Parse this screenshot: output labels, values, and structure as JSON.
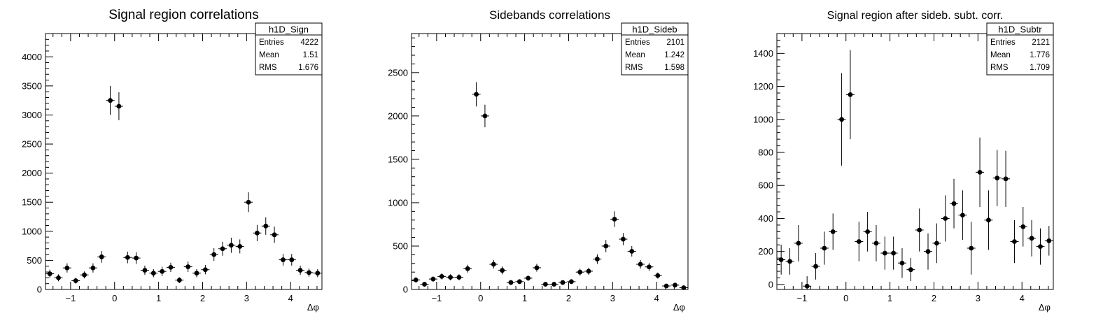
{
  "chart_data": [
    {
      "type": "scatter",
      "title": "Signal region correlations",
      "xlabel": "Δφ",
      "ylabel": "",
      "xlim": [
        -1.5708,
        4.7124
      ],
      "ylim": [
        0,
        4400
      ],
      "xticks": [
        -1,
        0,
        1,
        2,
        3,
        4
      ],
      "yticks": [
        0,
        500,
        1000,
        1500,
        2000,
        2500,
        3000,
        3500,
        4000
      ],
      "stats": {
        "name": "h1D_Sign",
        "entries": "4222",
        "mean": "1.51",
        "rms": "1.676"
      },
      "series": [
        {
          "x": [
            -1.473,
            -1.276,
            -1.08,
            -0.884,
            -0.687,
            -0.491,
            -0.295,
            -0.098,
            0.098,
            0.295,
            0.491,
            0.687,
            0.884,
            1.08,
            1.276,
            1.473,
            1.669,
            1.865,
            2.062,
            2.258,
            2.454,
            2.651,
            2.847,
            3.043,
            3.24,
            3.436,
            3.632,
            3.829,
            4.025,
            4.221,
            4.418,
            4.614
          ],
          "y": [
            270,
            200,
            370,
            150,
            250,
            370,
            560,
            3250,
            3150,
            550,
            540,
            330,
            280,
            310,
            380,
            160,
            390,
            280,
            340,
            600,
            700,
            760,
            740,
            1500,
            970,
            1090,
            940,
            510,
            510,
            330,
            290,
            280
          ],
          "err": [
            70,
            60,
            80,
            50,
            60,
            80,
            100,
            250,
            240,
            100,
            100,
            80,
            70,
            80,
            80,
            50,
            90,
            70,
            80,
            110,
            120,
            130,
            120,
            170,
            140,
            150,
            140,
            100,
            100,
            80,
            70,
            70
          ]
        }
      ]
    },
    {
      "type": "scatter",
      "title": "Sidebands correlations",
      "xlabel": "Δφ",
      "ylabel": "",
      "xlim": [
        -1.5708,
        4.7124
      ],
      "ylim": [
        0,
        2950
      ],
      "xticks": [
        -1,
        0,
        1,
        2,
        3,
        4
      ],
      "yticks": [
        0,
        500,
        1000,
        1500,
        2000,
        2500
      ],
      "stats": {
        "name": "h1D_Sideb",
        "entries": "2101",
        "mean": "1.242",
        "rms": "1.598"
      },
      "series": [
        {
          "x": [
            -1.473,
            -1.276,
            -1.08,
            -0.884,
            -0.687,
            -0.491,
            -0.295,
            -0.098,
            0.098,
            0.295,
            0.491,
            0.687,
            0.884,
            1.08,
            1.276,
            1.473,
            1.669,
            1.865,
            2.062,
            2.258,
            2.454,
            2.651,
            2.847,
            3.043,
            3.24,
            3.436,
            3.632,
            3.829,
            4.025,
            4.221,
            4.418,
            4.614
          ],
          "y": [
            110,
            60,
            120,
            150,
            140,
            140,
            240,
            2250,
            2000,
            290,
            220,
            80,
            90,
            130,
            250,
            60,
            60,
            80,
            90,
            200,
            210,
            350,
            500,
            810,
            580,
            440,
            290,
            260,
            160,
            40,
            50,
            20
          ],
          "err": [
            30,
            25,
            30,
            35,
            35,
            35,
            45,
            140,
            130,
            50,
            45,
            25,
            25,
            30,
            45,
            20,
            20,
            25,
            25,
            40,
            40,
            55,
            70,
            90,
            70,
            60,
            50,
            45,
            35,
            15,
            18,
            12
          ]
        }
      ]
    },
    {
      "type": "scatter",
      "title": "Signal region after sideb. subt. corr.",
      "xlabel": "Δφ",
      "ylabel": "",
      "xlim": [
        -1.5708,
        4.7124
      ],
      "ylim": [
        -30,
        1520
      ],
      "xticks": [
        -1,
        0,
        1,
        2,
        3,
        4
      ],
      "yticks": [
        0,
        200,
        400,
        600,
        800,
        1000,
        1200,
        1400
      ],
      "stats": {
        "name": "h1D_Subtr",
        "entries": "2121",
        "mean": "1.776",
        "rms": "1.709"
      },
      "series": [
        {
          "x": [
            -1.473,
            -1.276,
            -1.08,
            -0.884,
            -0.687,
            -0.491,
            -0.295,
            -0.098,
            0.098,
            0.295,
            0.491,
            0.687,
            0.884,
            1.08,
            1.276,
            1.473,
            1.669,
            1.865,
            2.062,
            2.258,
            2.454,
            2.651,
            2.847,
            3.043,
            3.24,
            3.436,
            3.632,
            3.829,
            4.025,
            4.221,
            4.418,
            4.614
          ],
          "y": [
            150,
            140,
            250,
            -10,
            110,
            220,
            320,
            1000,
            1150,
            260,
            320,
            250,
            190,
            190,
            130,
            90,
            330,
            200,
            250,
            400,
            490,
            420,
            220,
            680,
            390,
            645,
            640,
            260,
            350,
            280,
            230,
            265
          ],
          "err": [
            90,
            80,
            110,
            60,
            80,
            100,
            110,
            280,
            270,
            120,
            120,
            110,
            100,
            100,
            90,
            70,
            130,
            110,
            120,
            140,
            150,
            150,
            160,
            210,
            180,
            170,
            170,
            130,
            120,
            110,
            110,
            90
          ]
        }
      ]
    }
  ]
}
